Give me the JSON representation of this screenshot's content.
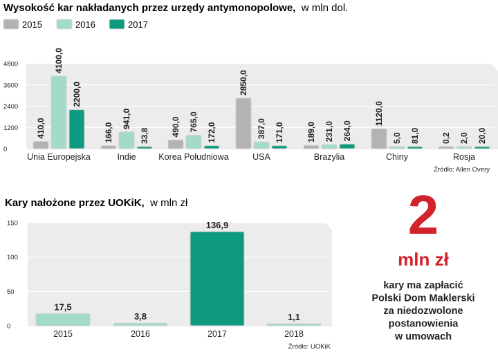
{
  "colors": {
    "series_2015": "#b3b3b3",
    "series_2016": "#a3dbc9",
    "series_2017": "#0e9a7f",
    "accent": "#d2232a",
    "panel_background": "#ececec"
  },
  "chart_data": [
    {
      "type": "bar",
      "title": "Wysokość kar nakładanych przez urzędy antymonopolowe,",
      "subtitle": "w mln dol.",
      "xlabel": "",
      "ylabel": "",
      "ylim": [
        0,
        4800
      ],
      "yticks": [
        "0",
        "1200",
        "2400",
        "3600",
        "4800"
      ],
      "categories": [
        "Unia Europejska",
        "Indie",
        "Korea Południowa",
        "USA",
        "Brazylia",
        "Chiny",
        "Rosja"
      ],
      "series": [
        {
          "name": "2015",
          "values": [
            410.0,
            166.0,
            490.0,
            2850.0,
            189.0,
            1120.0,
            0.2
          ],
          "labels": [
            "410,0",
            "166,0",
            "490,0",
            "2850,0",
            "189,0",
            "1120,0",
            "0,2"
          ]
        },
        {
          "name": "2016",
          "values": [
            4100.0,
            941.0,
            765.0,
            387.0,
            231.0,
            5.0,
            2.0
          ],
          "labels": [
            "4100,0",
            "941,0",
            "765,0",
            "387,0",
            "231,0",
            "5,0",
            "2,0"
          ]
        },
        {
          "name": "2017",
          "values": [
            2200.0,
            33.8,
            172.0,
            171.0,
            264.0,
            81.0,
            20.0
          ],
          "labels": [
            "2200,0",
            "33,8",
            "172,0",
            "171,0",
            "264,0",
            "81,0",
            "20,0"
          ]
        }
      ],
      "legend": "top-left",
      "source": "Źródło: Allen Overy"
    },
    {
      "type": "bar",
      "title": "Kary nałożone przez UOKiK,",
      "subtitle": "w  mln zł",
      "xlabel": "",
      "ylabel": "",
      "ylim": [
        0,
        150
      ],
      "yticks": [
        "0",
        "50",
        "100",
        "150"
      ],
      "categories": [
        "2015",
        "2016",
        "2017",
        "2018"
      ],
      "values": [
        17.5,
        3.8,
        136.9,
        1.1
      ],
      "labels": [
        "17,5",
        "3,8",
        "136,9",
        "1,1"
      ],
      "highlight_index": 2,
      "source": "Źródło: UOKiK"
    }
  ],
  "callout": {
    "number": "2",
    "unit": "mln zł",
    "lines": [
      "kary ma zapłacić",
      "Polski Dom Maklerski",
      "za niedozwolone",
      "postanowienia",
      "w umowach"
    ]
  }
}
